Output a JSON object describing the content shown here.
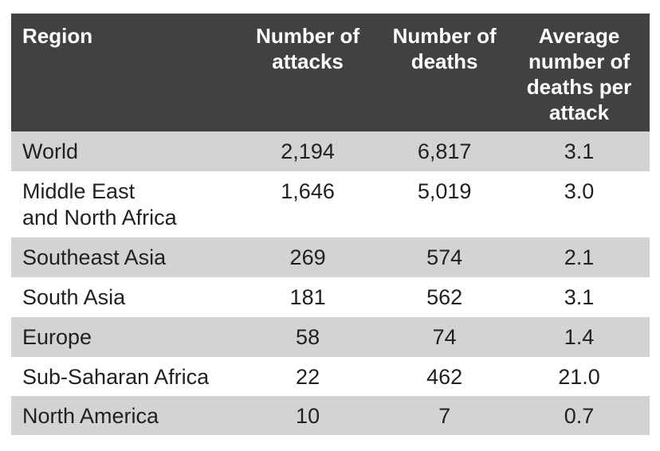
{
  "chart_data": {
    "type": "table",
    "columns": [
      "Region",
      "Number of attacks",
      "Number of deaths",
      "Average number of deaths per attack"
    ],
    "rows": [
      {
        "region": "World",
        "attacks": "2,194",
        "deaths": "6,817",
        "avg": "3.1"
      },
      {
        "region": "Middle East and North Africa",
        "attacks": "1,646",
        "deaths": "5,019",
        "avg": "3.0"
      },
      {
        "region": "Southeast Asia",
        "attacks": "269",
        "deaths": "574",
        "avg": "2.1"
      },
      {
        "region": "South Asia",
        "attacks": "181",
        "deaths": "562",
        "avg": "3.1"
      },
      {
        "region": "Europe",
        "attacks": "58",
        "deaths": "74",
        "avg": "1.4"
      },
      {
        "region": "Sub-Saharan Africa",
        "attacks": "22",
        "deaths": "462",
        "avg": "21.0"
      },
      {
        "region": "North America",
        "attacks": "10",
        "deaths": "7",
        "avg": "0.7"
      }
    ]
  },
  "colors": {
    "header": "#414042",
    "stripe": "#d1d3d4"
  }
}
